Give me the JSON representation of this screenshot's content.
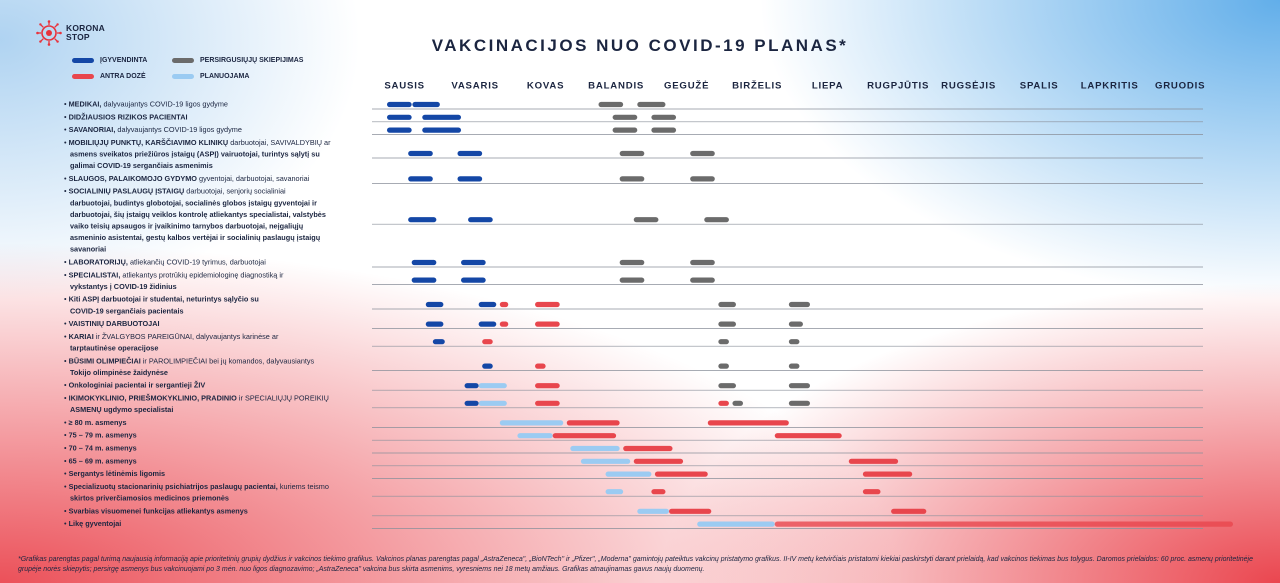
{
  "logo": {
    "name": "KORONA STOP",
    "line1": "KORONA",
    "line2": "STOP"
  },
  "title": "VAKCINACIJOS NUO COVID-19 PLANAS*",
  "legend": [
    {
      "label": "ĮGYVENDINTA",
      "color": "#1447a6"
    },
    {
      "label": "PERSIRGUSIŲJŲ SKIEPIJIMAS",
      "color": "#6b6b6b"
    },
    {
      "label": "ANTRA DOZĖ",
      "color": "#e8464d"
    },
    {
      "label": "PLANUOJAMA",
      "color": "#9bcbf2"
    }
  ],
  "footnote": "*Grafikas parengtas pagal turimą naujausią informaciją apie prioritetinių grupių dydžius ir vakcinos tiekimo grafikus. Vakcinos planas parengtas pagal „AstraZeneca\", „BioNTech\" ir „Pfizer\", „Moderna\" gamintojų pateiktus vakcinų pristatymo grafikus. II-IV metų ketvirčiais pristatomi kiekiai paskirstyti darant prielaidą, kad vakcinos tiekimas bus tolygus. Daromos prielaidos: 60 proc. asmenų prioritetinėje grupėje norės skiepytis; persirgę asmenys bus vakcinuojami po 3 mėn. nuo ligos diagnozavimo; „AstraZeneca\" vakcina bus skirta asmenims, vyresniems nei 18 metų amžiaus. Grafikas atnaujinamas gavus naujų duomenų.",
  "chart_data": {
    "type": "gantt",
    "title": "VAKCINACIJOS NUO COVID-19 PLANAS*",
    "months": [
      "SAUSIS",
      "VASARIS",
      "KOVAS",
      "BALANDIS",
      "GEGUŽĖ",
      "BIRŽELIS",
      "LIEPA",
      "RUGPJŪTIS",
      "RUGSĖJIS",
      "SPALIS",
      "LAPKRITIS",
      "GRUODIS"
    ],
    "x_unit": "month of 2021 (0 = start of SAUSIS, 12 = end of GRUODIS)",
    "xlim": [
      0,
      12
    ],
    "status_colors": {
      "done": "#1447a6",
      "recovered": "#6b6b6b",
      "second": "#e8464d",
      "planned": "#9bcbf2"
    },
    "groups": [
      {
        "bullet": true,
        "bold": "MEDIKAI,",
        "rest": " dalyvaujantys COVID-19 ligos gydyme",
        "cont": [],
        "bars": [
          {
            "s": 0,
            "e": 0.35,
            "t": "done"
          },
          {
            "s": 0.36,
            "e": 0.75,
            "t": "done"
          },
          {
            "s": 3.0,
            "e": 3.35,
            "t": "recovered"
          },
          {
            "s": 3.55,
            "e": 3.95,
            "t": "recovered"
          }
        ]
      },
      {
        "bullet": true,
        "bold": "DIDŽIAUSIOS RIZIKOS PACIENTAI",
        "rest": "",
        "cont": [],
        "bars": [
          {
            "s": 0,
            "e": 0.35,
            "t": "done"
          },
          {
            "s": 0.5,
            "e": 1.05,
            "t": "done"
          },
          {
            "s": 3.2,
            "e": 3.55,
            "t": "recovered"
          },
          {
            "s": 3.75,
            "e": 4.1,
            "t": "recovered"
          }
        ]
      },
      {
        "bullet": true,
        "bold": "SAVANORIAI,",
        "rest": " dalyvaujantys COVID-19 ligos gydyme",
        "cont": [],
        "bars": [
          {
            "s": 0,
            "e": 0.35,
            "t": "done"
          },
          {
            "s": 0.5,
            "e": 1.05,
            "t": "done"
          },
          {
            "s": 3.2,
            "e": 3.55,
            "t": "recovered"
          },
          {
            "s": 3.75,
            "e": 4.1,
            "t": "recovered"
          }
        ]
      },
      {
        "bullet": true,
        "bold": "MOBILIŲJŲ PUNKTŲ, KARŠČIAVIMO KLINIKŲ",
        "rest": " darbuotojai, SAVIVALDYBIŲ ar",
        "cont": [
          "asmens sveikatos priežiūros įstaigų (ASPĮ) vairuotojai, turintys sąlytį su",
          "galimai COVID-19 sergančiais asmenimis"
        ],
        "bars": [
          {
            "s": 0.3,
            "e": 0.65,
            "t": "done"
          },
          {
            "s": 1.0,
            "e": 1.35,
            "t": "done"
          },
          {
            "s": 3.3,
            "e": 3.65,
            "t": "recovered"
          },
          {
            "s": 4.3,
            "e": 4.65,
            "t": "recovered"
          }
        ]
      },
      {
        "bullet": true,
        "bold": "SLAUGOS, PALAIKOMOJO GYDYMO",
        "rest": " gyventojai, darbuotojai, savanoriai",
        "cont": [],
        "bars": [
          {
            "s": 0.3,
            "e": 0.65,
            "t": "done"
          },
          {
            "s": 1.0,
            "e": 1.35,
            "t": "done"
          },
          {
            "s": 3.3,
            "e": 3.65,
            "t": "recovered"
          },
          {
            "s": 4.3,
            "e": 4.65,
            "t": "recovered"
          }
        ]
      },
      {
        "bullet": true,
        "bold": "SOCIALINIŲ PASLAUGŲ ĮSTAIGŲ",
        "rest": " darbuotojai, senjorių socialiniai",
        "cont": [
          "darbuotojai, budintys globotojai, socialinės globos įstaigų gyventojai ir",
          "darbuotojai, šių įstaigų veiklos kontrolę atliekantys specialistai, valstybės",
          "vaiko teisių apsaugos ir įvaikinimo tarnybos darbuotojai, neįgaliųjų",
          "asmeninio asistentai, gestų kalbos vertėjai ir socialinių paslaugų įstaigų",
          "savanoriai"
        ],
        "bars": [
          {
            "s": 0.3,
            "e": 0.7,
            "t": "done"
          },
          {
            "s": 1.15,
            "e": 1.5,
            "t": "done"
          },
          {
            "s": 3.5,
            "e": 3.85,
            "t": "recovered"
          },
          {
            "s": 4.5,
            "e": 4.85,
            "t": "recovered"
          }
        ]
      },
      {
        "bullet": true,
        "bold": "LABORATORIJŲ,",
        "rest": " atliekančių COVID-19 tyrimus, darbuotojai",
        "cont": [],
        "bars": [
          {
            "s": 0.35,
            "e": 0.7,
            "t": "done"
          },
          {
            "s": 1.05,
            "e": 1.4,
            "t": "done"
          },
          {
            "s": 3.3,
            "e": 3.65,
            "t": "recovered"
          },
          {
            "s": 4.3,
            "e": 4.65,
            "t": "recovered"
          }
        ]
      },
      {
        "bullet": true,
        "bold": "SPECIALISTAI,",
        "rest": " atliekantys protrūkių epidemiologinę diagnostiką ir",
        "cont": [
          "vykstantys į COVID-19 židinius"
        ],
        "bars": [
          {
            "s": 0.35,
            "e": 0.7,
            "t": "done"
          },
          {
            "s": 1.05,
            "e": 1.4,
            "t": "done"
          },
          {
            "s": 3.3,
            "e": 3.65,
            "t": "recovered"
          },
          {
            "s": 4.3,
            "e": 4.65,
            "t": "recovered"
          }
        ]
      },
      {
        "bullet": true,
        "bold": "",
        "rest": "Kiti ASPĮ darbuotojai ir studentai, neturintys sąlyčio su",
        "cont": [
          "COVID-19 sergančiais pacientais"
        ],
        "bars": [
          {
            "s": 0.55,
            "e": 0.8,
            "t": "done"
          },
          {
            "s": 1.3,
            "e": 1.55,
            "t": "done"
          },
          {
            "s": 1.6,
            "e": 1.72,
            "t": "second"
          },
          {
            "s": 2.1,
            "e": 2.45,
            "t": "second"
          },
          {
            "s": 4.7,
            "e": 4.95,
            "t": "recovered"
          },
          {
            "s": 5.7,
            "e": 6.0,
            "t": "recovered"
          }
        ]
      },
      {
        "bullet": true,
        "bold": "VAISTINIŲ DARBUOTOJAI",
        "rest": "",
        "cont": [],
        "bars": [
          {
            "s": 0.55,
            "e": 0.8,
            "t": "done"
          },
          {
            "s": 1.3,
            "e": 1.55,
            "t": "done"
          },
          {
            "s": 1.6,
            "e": 1.72,
            "t": "second"
          },
          {
            "s": 2.1,
            "e": 2.45,
            "t": "second"
          },
          {
            "s": 4.7,
            "e": 4.95,
            "t": "recovered"
          },
          {
            "s": 5.7,
            "e": 5.9,
            "t": "recovered"
          }
        ]
      },
      {
        "bullet": true,
        "bold": "KARIAI",
        "rest": " ir ŽVALGYBOS PAREIGŪNAI, dalyvaujantys karinėse ar",
        "cont": [
          "tarptautinėse operacijose"
        ],
        "bars": [
          {
            "s": 0.65,
            "e": 0.82,
            "t": "done"
          },
          {
            "s": 1.35,
            "e": 1.5,
            "t": "second"
          },
          {
            "s": 4.7,
            "e": 4.85,
            "t": "recovered"
          },
          {
            "s": 5.7,
            "e": 5.85,
            "t": "recovered"
          }
        ]
      },
      {
        "bullet": true,
        "bold": "BŪSIMI OLIMPIEČIAI",
        "rest": " ir PAROLIMPIEČIAI bei jų komandos, dalyvausiantys",
        "cont": [
          "Tokijo olimpinėse žaidynėse"
        ],
        "bars": [
          {
            "s": 1.35,
            "e": 1.5,
            "t": "done"
          },
          {
            "s": 2.1,
            "e": 2.25,
            "t": "second"
          },
          {
            "s": 4.7,
            "e": 4.85,
            "t": "recovered"
          },
          {
            "s": 5.7,
            "e": 5.85,
            "t": "recovered"
          }
        ]
      },
      {
        "bullet": true,
        "bold": "",
        "rest": "Onkologiniai pacientai ir sergantieji ŽIV",
        "cont": [],
        "bars": [
          {
            "s": 1.1,
            "e": 1.3,
            "t": "done"
          },
          {
            "s": 1.3,
            "e": 1.7,
            "t": "planned"
          },
          {
            "s": 2.1,
            "e": 2.45,
            "t": "second"
          },
          {
            "s": 4.7,
            "e": 4.95,
            "t": "recovered"
          },
          {
            "s": 5.7,
            "e": 6.0,
            "t": "recovered"
          }
        ]
      },
      {
        "bullet": true,
        "bold": "IKIMOKYKLINIO, PRIEŠMOKYKLINIO, PRADINIO",
        "rest": " ir SPECIALIŲJŲ POREIKIŲ",
        "cont": [
          "ASMENŲ ugdymo specialistai"
        ],
        "bars": [
          {
            "s": 1.1,
            "e": 1.3,
            "t": "done"
          },
          {
            "s": 1.3,
            "e": 1.7,
            "t": "planned"
          },
          {
            "s": 2.1,
            "e": 2.45,
            "t": "second"
          },
          {
            "s": 4.7,
            "e": 4.85,
            "t": "second"
          },
          {
            "s": 4.9,
            "e": 5.05,
            "t": "recovered"
          },
          {
            "s": 5.7,
            "e": 6.0,
            "t": "recovered"
          }
        ]
      },
      {
        "bullet": true,
        "bold": "≥ 80 m. asmenys",
        "rest": "",
        "cont": [],
        "bars": [
          {
            "s": 1.6,
            "e": 2.5,
            "t": "planned"
          },
          {
            "s": 2.55,
            "e": 3.3,
            "t": "second"
          },
          {
            "s": 4.55,
            "e": 5.7,
            "t": "second"
          }
        ]
      },
      {
        "bullet": true,
        "bold": "75 – 79 m. asmenys",
        "rest": "",
        "cont": [],
        "bars": [
          {
            "s": 1.85,
            "e": 2.35,
            "t": "planned"
          },
          {
            "s": 2.35,
            "e": 3.25,
            "t": "second"
          },
          {
            "s": 5.5,
            "e": 6.45,
            "t": "second"
          }
        ]
      },
      {
        "bullet": true,
        "bold": "70 – 74 m. asmenys",
        "rest": "",
        "cont": [],
        "bars": [
          {
            "s": 2.6,
            "e": 3.3,
            "t": "planned"
          },
          {
            "s": 3.35,
            "e": 4.05,
            "t": "second"
          }
        ]
      },
      {
        "bullet": true,
        "bold": "65 – 69 m. asmenys",
        "rest": "",
        "cont": [],
        "bars": [
          {
            "s": 2.75,
            "e": 3.45,
            "t": "planned"
          },
          {
            "s": 3.5,
            "e": 4.2,
            "t": "second"
          },
          {
            "s": 6.55,
            "e": 7.25,
            "t": "second"
          }
        ]
      },
      {
        "bullet": true,
        "bold": "Sergantys lėtinėmis ligomis",
        "rest": "",
        "cont": [],
        "bars": [
          {
            "s": 3.1,
            "e": 3.75,
            "t": "planned"
          },
          {
            "s": 3.8,
            "e": 4.55,
            "t": "second"
          },
          {
            "s": 6.75,
            "e": 7.45,
            "t": "second"
          }
        ]
      },
      {
        "bullet": true,
        "bold": "Specializuotų stacionarinių psichiatrijos paslaugų pacientai,",
        "rest": " kuriems teismo",
        "cont": [
          "skirtos priverčiamosios medicinos priemonės"
        ],
        "bars": [
          {
            "s": 3.1,
            "e": 3.35,
            "t": "planned"
          },
          {
            "s": 3.75,
            "e": 3.95,
            "t": "second"
          },
          {
            "s": 6.75,
            "e": 7.0,
            "t": "second"
          }
        ]
      },
      {
        "bullet": true,
        "bold": "Svarbias visuomenei funkcijas atliekantys asmenys",
        "rest": "",
        "cont": [],
        "bars": [
          {
            "s": 3.55,
            "e": 4.0,
            "t": "planned"
          },
          {
            "s": 4.0,
            "e": 4.6,
            "t": "second"
          },
          {
            "s": 7.15,
            "e": 7.65,
            "t": "second"
          }
        ]
      },
      {
        "bullet": true,
        "bold": "Likę gyventojai",
        "rest": "",
        "cont": [],
        "bars": [
          {
            "s": 4.4,
            "e": 5.5,
            "t": "planned"
          },
          {
            "s": 5.5,
            "e": 12.0,
            "t": "second"
          }
        ]
      }
    ]
  }
}
